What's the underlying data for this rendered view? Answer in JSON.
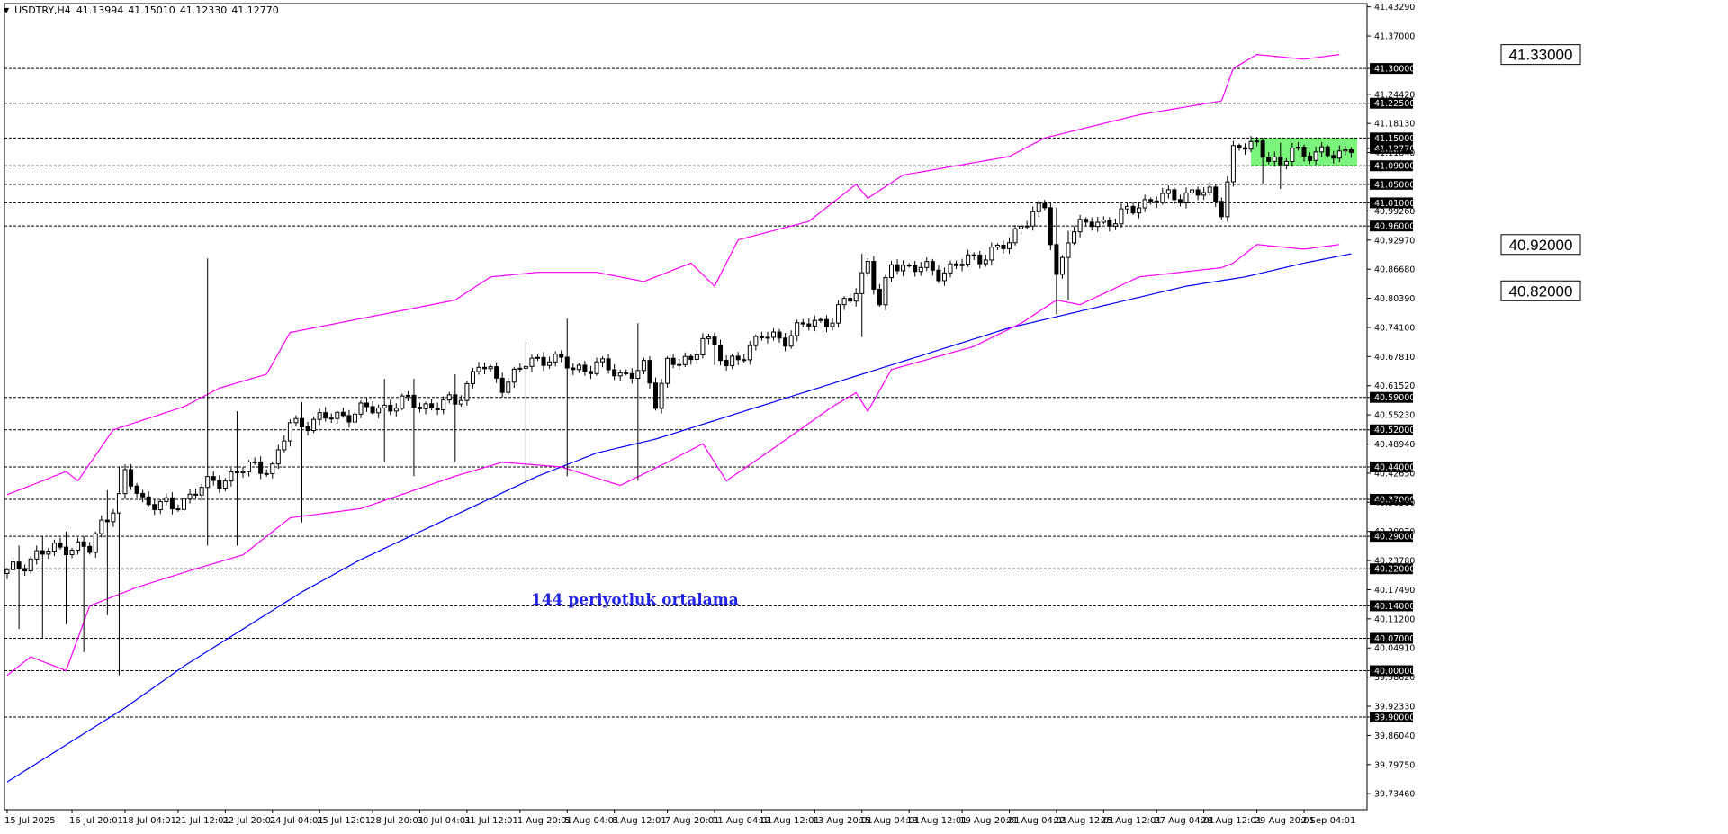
{
  "window": {
    "symbol_timeframe": "USDTRY,H4",
    "ohlc": [
      "41.13994",
      "41.15010",
      "41.12330",
      "41.12770"
    ]
  },
  "annotation": {
    "text": "144 periyotluk ortalama",
    "color": "#2323e6"
  },
  "colors": {
    "background": "#ffffff",
    "frame": "#000000",
    "candle": "#000000",
    "bollinger": "#ff00ff",
    "ma": "#0000ff",
    "zone": "#7cf57c",
    "level_line": "#000000"
  },
  "chart_data": {
    "type": "candlestick",
    "symbol": "USDTRY",
    "timeframe": "H4",
    "ylim": [
      39.7,
      41.44
    ],
    "y_ticks": [
      "41.43290",
      "41.37000",
      "41.30000",
      "41.24420",
      "41.22500",
      "41.18130",
      "41.15000",
      "41.12770",
      "41.11840",
      "41.09000",
      "41.05000",
      "41.01000",
      "40.99260",
      "40.96000",
      "40.92970",
      "40.86680",
      "40.80390",
      "40.74100",
      "40.67810",
      "40.61520",
      "40.59000",
      "40.55230",
      "40.52000",
      "40.48940",
      "40.44000",
      "40.42650",
      "40.37000",
      "40.36360",
      "40.30070",
      "40.29000",
      "40.23780",
      "40.22000",
      "40.17490",
      "40.14000",
      "40.11200",
      "40.07000",
      "40.04910",
      "40.00000",
      "39.98620",
      "39.92330",
      "39.90000",
      "39.86040",
      "39.79750",
      "39.73460"
    ],
    "boxed_ticks": [
      "41.30000",
      "41.22500",
      "41.15000",
      "41.12770",
      "41.09000",
      "41.05000",
      "41.01000",
      "40.96000",
      "40.59000",
      "40.52000",
      "40.44000",
      "40.37000",
      "40.29000",
      "40.22000",
      "40.14000",
      "40.07000",
      "40.00000",
      "39.90000"
    ],
    "horizontal_levels": [
      41.3,
      41.225,
      41.15,
      41.09,
      41.05,
      41.01,
      40.96,
      40.59,
      40.52,
      40.44,
      40.37,
      40.29,
      40.22,
      40.14,
      40.07,
      40.0,
      39.9
    ],
    "level_labels": [
      {
        "text": "41.33000",
        "value": 41.33
      },
      {
        "text": "40.92000",
        "value": 40.92
      },
      {
        "text": "40.82000",
        "value": 40.82
      }
    ],
    "zone": {
      "from": 41.09,
      "to": 41.15,
      "start_index": 211,
      "end_index": 229
    },
    "x_labels": [
      {
        "text": "15 Jul 2025",
        "index": 0
      },
      {
        "text": "16 Jul 20:01",
        "index": 11
      },
      {
        "text": "18 Jul 04:01",
        "index": 20
      },
      {
        "text": "21 Jul 12:01",
        "index": 29
      },
      {
        "text": "22 Jul 20:01",
        "index": 37
      },
      {
        "text": "24 Jul 04:01",
        "index": 45
      },
      {
        "text": "25 Jul 12:01",
        "index": 53
      },
      {
        "text": "28 Jul 20:01",
        "index": 62
      },
      {
        "text": "30 Jul 04:01",
        "index": 70
      },
      {
        "text": "31 Jul 12:01",
        "index": 78
      },
      {
        "text": "1 Aug 20:01",
        "index": 87
      },
      {
        "text": "5 Aug 04:01",
        "index": 95
      },
      {
        "text": "6 Aug 12:01",
        "index": 103
      },
      {
        "text": "7 Aug 20:01",
        "index": 112
      },
      {
        "text": "11 Aug 04:01",
        "index": 120
      },
      {
        "text": "12 Aug 12:01",
        "index": 128
      },
      {
        "text": "13 Aug 20:01",
        "index": 137
      },
      {
        "text": "15 Aug 04:01",
        "index": 145
      },
      {
        "text": "18 Aug 12:01",
        "index": 153
      },
      {
        "text": "19 Aug 20:01",
        "index": 162
      },
      {
        "text": "21 Aug 04:01",
        "index": 170
      },
      {
        "text": "22 Aug 12:01",
        "index": 178
      },
      {
        "text": "25 Aug 12:01",
        "index": 186
      },
      {
        "text": "27 Aug 04:01",
        "index": 195
      },
      {
        "text": "28 Aug 12:01",
        "index": 203
      },
      {
        "text": "29 Aug 20:01",
        "index": 212
      },
      {
        "text": "2 Sep 04:01",
        "index": 220
      }
    ],
    "price_anchors": [
      [
        0,
        40.21
      ],
      [
        5,
        40.25
      ],
      [
        10,
        40.27
      ],
      [
        14,
        40.26
      ],
      [
        16,
        40.32
      ],
      [
        19,
        40.37
      ],
      [
        20,
        40.42
      ],
      [
        23,
        40.37
      ],
      [
        28,
        40.35
      ],
      [
        32,
        40.39
      ],
      [
        36,
        40.41
      ],
      [
        39,
        40.43
      ],
      [
        42,
        40.44
      ],
      [
        45,
        40.44
      ],
      [
        48,
        40.53
      ],
      [
        52,
        40.54
      ],
      [
        56,
        40.55
      ],
      [
        60,
        40.56
      ],
      [
        64,
        40.57
      ],
      [
        68,
        40.58
      ],
      [
        72,
        40.57
      ],
      [
        76,
        40.58
      ],
      [
        80,
        40.66
      ],
      [
        84,
        40.62
      ],
      [
        88,
        40.66
      ],
      [
        92,
        40.68
      ],
      [
        96,
        40.65
      ],
      [
        100,
        40.66
      ],
      [
        104,
        40.64
      ],
      [
        108,
        40.65
      ],
      [
        110,
        40.58
      ],
      [
        112,
        40.67
      ],
      [
        116,
        40.66
      ],
      [
        118,
        40.73
      ],
      [
        120,
        40.7
      ],
      [
        122,
        40.65
      ],
      [
        124,
        40.68
      ],
      [
        128,
        40.72
      ],
      [
        132,
        40.72
      ],
      [
        136,
        40.75
      ],
      [
        140,
        40.76
      ],
      [
        144,
        40.82
      ],
      [
        146,
        40.89
      ],
      [
        148,
        40.78
      ],
      [
        150,
        40.88
      ],
      [
        154,
        40.87
      ],
      [
        158,
        40.86
      ],
      [
        162,
        40.88
      ],
      [
        166,
        40.9
      ],
      [
        170,
        40.92
      ],
      [
        172,
        40.97
      ],
      [
        176,
        41.0
      ],
      [
        178,
        40.85
      ],
      [
        180,
        40.94
      ],
      [
        184,
        40.97
      ],
      [
        188,
        40.97
      ],
      [
        192,
        41.01
      ],
      [
        196,
        41.02
      ],
      [
        200,
        41.03
      ],
      [
        204,
        41.03
      ],
      [
        206,
        41.0
      ],
      [
        208,
        41.12
      ],
      [
        212,
        41.14
      ],
      [
        216,
        41.08
      ],
      [
        218,
        41.13
      ],
      [
        222,
        41.11
      ],
      [
        226,
        41.12
      ],
      [
        228,
        41.13
      ]
    ],
    "wicks": [
      {
        "index": 2,
        "high": 40.27,
        "low": 40.09
      },
      {
        "index": 6,
        "high": 40.29,
        "low": 40.07
      },
      {
        "index": 10,
        "high": 40.3,
        "low": 40.1
      },
      {
        "index": 13,
        "high": 40.27,
        "low": 40.04
      },
      {
        "index": 17,
        "high": 40.39,
        "low": 40.12
      },
      {
        "index": 19,
        "high": 40.44,
        "low": 39.99
      },
      {
        "index": 34,
        "high": 40.89,
        "low": 40.27
      },
      {
        "index": 39,
        "high": 40.56,
        "low": 40.27
      },
      {
        "index": 50,
        "high": 40.58,
        "low": 40.32
      },
      {
        "index": 64,
        "high": 40.63,
        "low": 40.45
      },
      {
        "index": 69,
        "high": 40.63,
        "low": 40.42
      },
      {
        "index": 76,
        "high": 40.64,
        "low": 40.45
      },
      {
        "index": 88,
        "high": 40.71,
        "low": 40.4
      },
      {
        "index": 95,
        "high": 40.76,
        "low": 40.42
      },
      {
        "index": 107,
        "high": 40.75,
        "low": 40.41
      },
      {
        "index": 120,
        "high": 40.73,
        "low": 40.66
      },
      {
        "index": 145,
        "high": 40.9,
        "low": 40.72
      },
      {
        "index": 178,
        "high": 41.0,
        "low": 40.77
      },
      {
        "index": 180,
        "high": 40.95,
        "low": 40.8
      },
      {
        "index": 213,
        "high": 41.15,
        "low": 41.05
      },
      {
        "index": 216,
        "high": 41.14,
        "low": 41.04
      }
    ],
    "bollinger_upper": [
      [
        0,
        40.38
      ],
      [
        10,
        40.43
      ],
      [
        12,
        40.41
      ],
      [
        18,
        40.52
      ],
      [
        30,
        40.57
      ],
      [
        36,
        40.61
      ],
      [
        44,
        40.64
      ],
      [
        48,
        40.73
      ],
      [
        60,
        40.76
      ],
      [
        76,
        40.8
      ],
      [
        82,
        40.85
      ],
      [
        90,
        40.86
      ],
      [
        100,
        40.86
      ],
      [
        108,
        40.84
      ],
      [
        116,
        40.88
      ],
      [
        120,
        40.83
      ],
      [
        124,
        40.93
      ],
      [
        136,
        40.97
      ],
      [
        144,
        41.05
      ],
      [
        146,
        41.02
      ],
      [
        152,
        41.07
      ],
      [
        170,
        41.11
      ],
      [
        176,
        41.15
      ],
      [
        192,
        41.2
      ],
      [
        206,
        41.23
      ],
      [
        208,
        41.3
      ],
      [
        212,
        41.33
      ],
      [
        220,
        41.32
      ],
      [
        226,
        41.33
      ]
    ],
    "bollinger_lower": [
      [
        0,
        39.99
      ],
      [
        4,
        40.03
      ],
      [
        10,
        40.0
      ],
      [
        14,
        40.14
      ],
      [
        22,
        40.18
      ],
      [
        32,
        40.22
      ],
      [
        40,
        40.25
      ],
      [
        48,
        40.33
      ],
      [
        60,
        40.35
      ],
      [
        76,
        40.42
      ],
      [
        84,
        40.45
      ],
      [
        94,
        40.44
      ],
      [
        104,
        40.4
      ],
      [
        112,
        40.45
      ],
      [
        118,
        40.49
      ],
      [
        122,
        40.41
      ],
      [
        130,
        40.48
      ],
      [
        140,
        40.57
      ],
      [
        144,
        40.6
      ],
      [
        146,
        40.56
      ],
      [
        150,
        40.65
      ],
      [
        164,
        40.7
      ],
      [
        172,
        40.75
      ],
      [
        178,
        40.8
      ],
      [
        182,
        40.79
      ],
      [
        192,
        40.85
      ],
      [
        206,
        40.87
      ],
      [
        208,
        40.88
      ],
      [
        212,
        40.92
      ],
      [
        220,
        40.91
      ],
      [
        226,
        40.92
      ]
    ],
    "ma_144": [
      [
        0,
        39.76
      ],
      [
        10,
        39.84
      ],
      [
        20,
        39.92
      ],
      [
        30,
        40.01
      ],
      [
        40,
        40.09
      ],
      [
        50,
        40.17
      ],
      [
        60,
        40.24
      ],
      [
        70,
        40.3
      ],
      [
        80,
        40.36
      ],
      [
        90,
        40.42
      ],
      [
        100,
        40.47
      ],
      [
        110,
        40.5
      ],
      [
        120,
        40.54
      ],
      [
        130,
        40.58
      ],
      [
        140,
        40.62
      ],
      [
        150,
        40.66
      ],
      [
        160,
        40.7
      ],
      [
        170,
        40.74
      ],
      [
        180,
        40.77
      ],
      [
        190,
        40.8
      ],
      [
        200,
        40.83
      ],
      [
        210,
        40.85
      ],
      [
        220,
        40.88
      ],
      [
        228,
        40.9
      ]
    ]
  }
}
